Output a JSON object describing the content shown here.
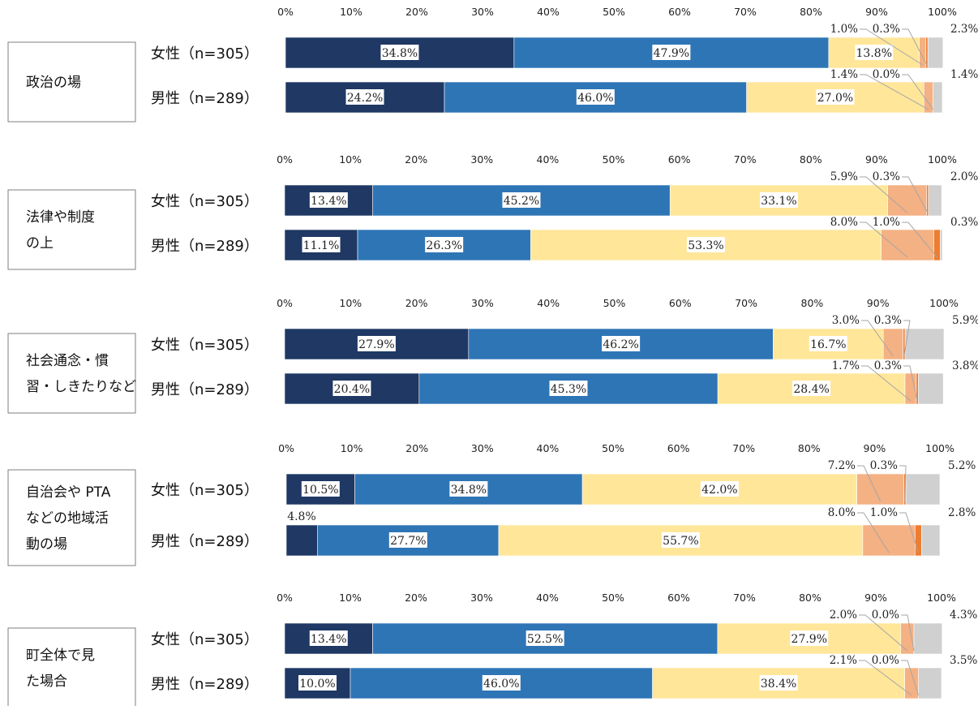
{
  "chart_data": {
    "type": "bar",
    "orientation": "horizontal-stacked-100",
    "x_ticks": [
      "0%",
      "10%",
      "20%",
      "30%",
      "40%",
      "50%",
      "60%",
      "70%",
      "80%",
      "90%",
      "100%"
    ],
    "xlim": [
      0,
      100
    ],
    "grid": false,
    "legend": "none",
    "colors": [
      "#1f3864",
      "#2e75b6",
      "#ffe699",
      "#f4b183",
      "#ed7d31",
      "#d0d0d0"
    ],
    "groups": [
      {
        "category_lines": [
          "政治の場"
        ],
        "rows": [
          {
            "label": "女性（n=305）",
            "values": [
              34.8,
              47.9,
              13.8,
              1.0,
              0.3,
              2.3
            ],
            "labels": [
              "34.8%",
              "47.9%",
              "13.8%",
              "1.0%",
              "0.3%",
              "2.3%"
            ]
          },
          {
            "label": "男性（n=289）",
            "values": [
              24.2,
              46.0,
              27.0,
              1.4,
              0.0,
              1.4
            ],
            "labels": [
              "24.2%",
              "46.0%",
              "27.0%",
              "1.4%",
              "0.0%",
              "1.4%"
            ]
          }
        ]
      },
      {
        "category_lines": [
          "法律や制度",
          "の上"
        ],
        "rows": [
          {
            "label": "女性（n=305）",
            "values": [
              13.4,
              45.2,
              33.1,
              5.9,
              0.3,
              2.0
            ],
            "labels": [
              "13.4%",
              "45.2%",
              "33.1%",
              "5.9%",
              "0.3%",
              "2.0%"
            ]
          },
          {
            "label": "男性（n=289）",
            "values": [
              11.1,
              26.3,
              53.3,
              8.0,
              1.0,
              0.3
            ],
            "labels": [
              "11.1%",
              "26.3%",
              "53.3%",
              "8.0%",
              "1.0%",
              "0.3%"
            ]
          }
        ]
      },
      {
        "category_lines": [
          "社会通念・慣",
          "習・しきたりなど"
        ],
        "rows": [
          {
            "label": "女性（n=305）",
            "values": [
              27.9,
              46.2,
              16.7,
              3.0,
              0.3,
              5.9
            ],
            "labels": [
              "27.9%",
              "46.2%",
              "16.7%",
              "3.0%",
              "0.3%",
              "5.9%"
            ]
          },
          {
            "label": "男性（n=289）",
            "values": [
              20.4,
              45.3,
              28.4,
              1.7,
              0.3,
              3.8
            ],
            "labels": [
              "20.4%",
              "45.3%",
              "28.4%",
              "1.7%",
              "0.3%",
              "3.8%"
            ]
          }
        ]
      },
      {
        "category_lines": [
          "自治会や PTA",
          "などの地域活",
          "動の場"
        ],
        "rows": [
          {
            "label": "女性（n=305）",
            "values": [
              10.5,
              34.8,
              42.0,
              7.2,
              0.3,
              5.2
            ],
            "labels": [
              "10.5%",
              "34.8%",
              "42.0%",
              "7.2%",
              "0.3%",
              "5.2%"
            ]
          },
          {
            "label": "男性（n=289）",
            "values": [
              4.8,
              27.7,
              55.7,
              8.0,
              1.0,
              2.8
            ],
            "labels": [
              "4.8%",
              "27.7%",
              "55.7%",
              "8.0%",
              "1.0%",
              "2.8%"
            ]
          }
        ]
      },
      {
        "category_lines": [
          "町全体で見",
          "た場合"
        ],
        "rows": [
          {
            "label": "女性（n=305）",
            "values": [
              13.4,
              52.5,
              27.9,
              2.0,
              0.0,
              4.3
            ],
            "labels": [
              "13.4%",
              "52.5%",
              "27.9%",
              "2.0%",
              "0.0%",
              "4.3%"
            ]
          },
          {
            "label": "男性（n=289）",
            "values": [
              10.0,
              46.0,
              38.4,
              2.1,
              0.0,
              3.5
            ],
            "labels": [
              "10.0%",
              "46.0%",
              "38.4%",
              "2.1%",
              "0.0%",
              "3.5%"
            ]
          }
        ]
      }
    ]
  }
}
